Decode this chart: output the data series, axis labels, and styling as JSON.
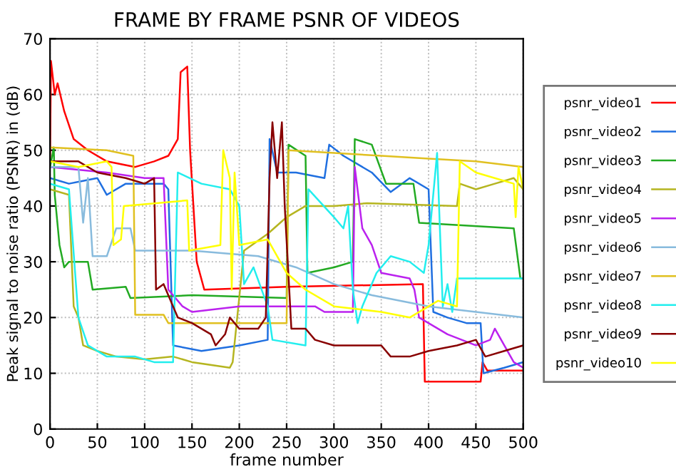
{
  "chart_data": {
    "type": "line",
    "title": "FRAME BY FRAME PSNR OF VIDEOS",
    "xlabel": "frame number",
    "ylabel": "Peak signal to noise ratio (PSNR) in (dB)",
    "xlim": [
      0,
      500
    ],
    "ylim": [
      0,
      70
    ],
    "xticks": [
      0,
      50,
      100,
      150,
      200,
      250,
      300,
      350,
      400,
      450,
      500
    ],
    "yticks": [
      0,
      10,
      20,
      30,
      40,
      50,
      60,
      70
    ],
    "grid": true,
    "legend": "right",
    "marker": "none",
    "line_style": "solid",
    "series": [
      {
        "name": "psnr_video1",
        "color": "#ff0000",
        "x": [
          0,
          1,
          5,
          8,
          15,
          25,
          40,
          60,
          90,
          110,
          125,
          135,
          138,
          145,
          148,
          155,
          163,
          250,
          394,
          396,
          455,
          457,
          462,
          500
        ],
        "values": [
          48,
          66,
          60,
          62,
          57,
          52,
          50,
          48,
          47,
          48,
          49,
          52,
          64,
          65,
          50,
          30,
          25,
          25.5,
          26,
          8.5,
          8.5,
          12,
          10.5,
          10.5
        ]
      },
      {
        "name": "psnr_video2",
        "color": "#1f6fe0",
        "x": [
          0,
          20,
          50,
          60,
          80,
          120,
          125,
          130,
          160,
          200,
          230,
          232,
          240,
          260,
          290,
          295,
          310,
          340,
          360,
          380,
          400,
          405,
          420,
          440,
          455,
          458,
          480,
          500
        ],
        "values": [
          45,
          44,
          45,
          42,
          44,
          44,
          43,
          15,
          14,
          15,
          16,
          52,
          46,
          46,
          45,
          51,
          49,
          46,
          42.5,
          45,
          43,
          21,
          20,
          19,
          19,
          10,
          11,
          12
        ]
      },
      {
        "name": "psnr_video3",
        "color": "#22aa22",
        "x": [
          0,
          4,
          5,
          10,
          15,
          20,
          40,
          45,
          80,
          85,
          150,
          250,
          252,
          270,
          272,
          300,
          320,
          322,
          340,
          355,
          384,
          390,
          490,
          497,
          500
        ],
        "values": [
          47,
          50.5,
          42,
          33,
          29,
          30,
          30,
          25,
          25.5,
          23.5,
          24,
          23.5,
          51,
          49,
          28,
          29,
          30,
          52,
          51,
          44,
          44,
          37,
          36,
          27,
          27
        ]
      },
      {
        "name": "psnr_video4",
        "color": "#b5b520",
        "x": [
          0,
          20,
          25,
          30,
          35,
          50,
          70,
          100,
          130,
          150,
          190,
          193,
          205,
          230,
          250,
          270,
          300,
          335,
          430,
          433,
          450,
          470,
          490,
          500
        ],
        "values": [
          43,
          42,
          22,
          20,
          15,
          14,
          13,
          12.5,
          13,
          12,
          11,
          12,
          32,
          35,
          38,
          40,
          40,
          40.5,
          40,
          44,
          43,
          44,
          45,
          43
        ]
      },
      {
        "name": "psnr_video5",
        "color": "#bb22ee",
        "x": [
          0,
          60,
          100,
          120,
          125,
          140,
          150,
          200,
          280,
          290,
          320,
          322,
          330,
          340,
          350,
          380,
          385,
          390,
          420,
          450,
          465,
          470,
          480,
          490,
          500
        ],
        "values": [
          47,
          46,
          45,
          45,
          25,
          22,
          21,
          22,
          22,
          21,
          21,
          47,
          36,
          33,
          28,
          27,
          25,
          20,
          17,
          15,
          16,
          18,
          15,
          12,
          11
        ]
      },
      {
        "name": "psnr_video6",
        "color": "#88bbdd",
        "x": [
          0,
          30,
          35,
          40,
          45,
          60,
          70,
          85,
          90,
          120,
          150,
          220,
          260,
          300,
          340,
          400,
          450,
          500
        ],
        "values": [
          47,
          47,
          37,
          45,
          31,
          31,
          36,
          36,
          32,
          32,
          32,
          31,
          29,
          26,
          24,
          22,
          21,
          20
        ]
      },
      {
        "name": "psnr_video7",
        "color": "#e0c020",
        "x": [
          0,
          60,
          88,
          90,
          120,
          125,
          190,
          250,
          252,
          300,
          350,
          400,
          450,
          500
        ],
        "values": [
          50.5,
          50,
          49,
          20.5,
          20.5,
          19,
          19,
          19,
          50,
          49.5,
          49,
          48.5,
          48,
          47
        ]
      },
      {
        "name": "psnr_video8",
        "color": "#22eeee",
        "x": [
          0,
          20,
          30,
          40,
          60,
          90,
          110,
          130,
          135,
          160,
          190,
          200,
          205,
          215,
          230,
          235,
          270,
          273,
          300,
          310,
          315,
          320,
          325,
          330,
          345,
          360,
          380,
          395,
          400,
          409,
          415,
          420,
          425,
          430,
          500
        ],
        "values": [
          44,
          43,
          20,
          15,
          13,
          13,
          12,
          12,
          46,
          44,
          43,
          40,
          26,
          29,
          22,
          16,
          15,
          43,
          38,
          36,
          40,
          25,
          19,
          22,
          28,
          31,
          30,
          28,
          33,
          49.5,
          22,
          26,
          21,
          27,
          27
        ]
      },
      {
        "name": "psnr_video9",
        "color": "#880000",
        "x": [
          0,
          30,
          50,
          80,
          100,
          110,
          112,
          120,
          135,
          150,
          170,
          175,
          185,
          190,
          200,
          220,
          228,
          232,
          235,
          240,
          245,
          248,
          255,
          270,
          280,
          300,
          350,
          360,
          380,
          400,
          430,
          450,
          460,
          480,
          500
        ],
        "values": [
          48,
          48,
          46,
          45,
          44,
          45,
          25,
          26,
          20,
          19,
          17,
          15,
          17,
          20,
          18,
          18,
          20,
          45,
          55,
          45,
          55,
          40,
          18,
          18,
          16,
          15,
          15,
          13,
          13,
          14,
          15,
          16,
          13,
          14,
          15
        ]
      },
      {
        "name": "psnr_video10",
        "color": "#ffff00",
        "x": [
          0,
          30,
          60,
          65,
          67,
          75,
          78,
          145,
          147,
          180,
          183,
          190,
          192,
          195,
          200,
          230,
          250,
          270,
          300,
          350,
          380,
          410,
          430,
          433,
          450,
          490,
          492,
          495,
          500
        ],
        "values": [
          48,
          47,
          48,
          47,
          33,
          34,
          40,
          41,
          32,
          33,
          50,
          45,
          25,
          46,
          33,
          34,
          28,
          25,
          22,
          21,
          20,
          23,
          22,
          48,
          46,
          44,
          38,
          47,
          43
        ]
      }
    ]
  }
}
